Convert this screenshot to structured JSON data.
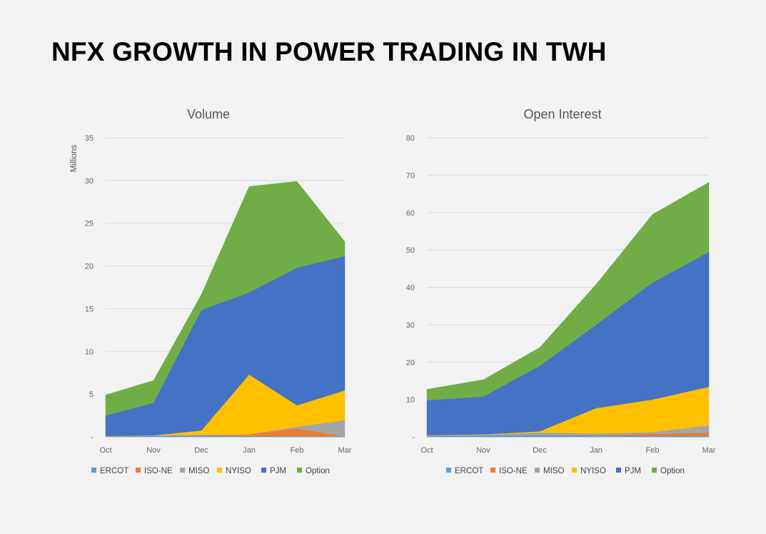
{
  "page": {
    "title": "NFX GROWTH IN POWER TRADING IN TWH"
  },
  "chart_data": [
    {
      "type": "area",
      "stacked": true,
      "title": "Volume",
      "ylabel": "Millions",
      "xlabel": "",
      "categories": [
        "Oct",
        "Nov",
        "Dec",
        "Jan",
        "Feb",
        "Mar"
      ],
      "ylim": [
        0,
        35
      ],
      "yticks": [
        0,
        5,
        10,
        15,
        20,
        25,
        30,
        35
      ],
      "ytick_labels": [
        "-",
        "5",
        "10",
        "15",
        "20",
        "25",
        "30",
        "35"
      ],
      "grid": true,
      "legend_position": "bottom",
      "series": [
        {
          "name": "ERCOT",
          "color": "#5B9BD5",
          "values": [
            0.05,
            0.1,
            0.15,
            0.1,
            0.1,
            0.05
          ]
        },
        {
          "name": "ISO-NE",
          "color": "#ED7D31",
          "values": [
            0,
            0,
            0,
            0.2,
            0.9,
            0
          ]
        },
        {
          "name": "MISO",
          "color": "#A5A5A5",
          "values": [
            0,
            0.1,
            0.1,
            0,
            0.2,
            1.9
          ]
        },
        {
          "name": "NYISO",
          "color": "#FFC000",
          "values": [
            0.05,
            0,
            0.5,
            7.0,
            2.5,
            3.5
          ]
        },
        {
          "name": "PJM",
          "color": "#4472C4",
          "values": [
            2.4,
            3.8,
            14.1,
            9.6,
            16.1,
            15.7
          ]
        },
        {
          "name": "Option",
          "color": "#70AD47",
          "values": [
            2.4,
            2.6,
            1.8,
            12.4,
            10.1,
            1.7
          ]
        }
      ]
    },
    {
      "type": "area",
      "stacked": true,
      "title": "Open Interest",
      "ylabel": "",
      "xlabel": "",
      "categories": [
        "Oct",
        "Nov",
        "Dec",
        "Jan",
        "Feb",
        "Mar"
      ],
      "ylim": [
        0,
        80
      ],
      "yticks": [
        0,
        10,
        20,
        30,
        40,
        50,
        60,
        70,
        80
      ],
      "ytick_labels": [
        "-",
        "10",
        "20",
        "30",
        "40",
        "50",
        "60",
        "70",
        "80"
      ],
      "grid": true,
      "legend_position": "bottom",
      "series": [
        {
          "name": "ERCOT",
          "color": "#5B9BD5",
          "values": [
            0.3,
            0.4,
            0.5,
            0.4,
            0.3,
            0.3
          ]
        },
        {
          "name": "ISO-NE",
          "color": "#ED7D31",
          "values": [
            0,
            0,
            0,
            0.1,
            0.6,
            0.8
          ]
        },
        {
          "name": "MISO",
          "color": "#A5A5A5",
          "values": [
            0.1,
            0.2,
            0.7,
            0.4,
            0.4,
            2.0
          ]
        },
        {
          "name": "NYISO",
          "color": "#FFC000",
          "values": [
            0.1,
            0.1,
            0.3,
            6.8,
            8.7,
            10.3
          ]
        },
        {
          "name": "PJM",
          "color": "#4472C4",
          "values": [
            9.3,
            10.1,
            17.5,
            22.3,
            31.3,
            36.1
          ]
        },
        {
          "name": "Option",
          "color": "#70AD47",
          "values": [
            2.9,
            4.5,
            4.9,
            10.8,
            18.2,
            18.6
          ]
        }
      ]
    }
  ]
}
